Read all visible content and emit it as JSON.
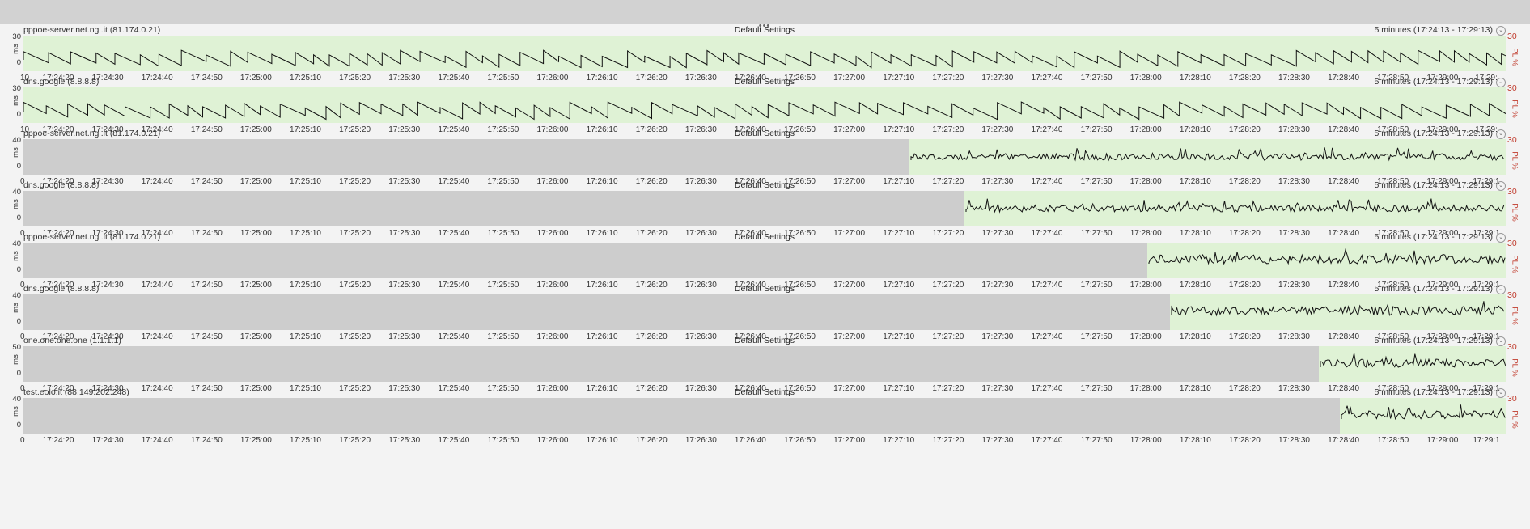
{
  "window": {
    "drag_handle": "•••"
  },
  "panels": [
    {
      "title": "pppoe-server.net.ngi.it (81.174.0.21)",
      "settings": "Default Settings",
      "range": "5 minutes (17:24:13 - 17:29:13)",
      "y_label": "ms",
      "y_ticks": [
        "30",
        "0"
      ],
      "right_max": "30",
      "right_label": "PL %",
      "x_ticks": [
        "10",
        "17:24:20",
        "17:24:30",
        "17:24:40",
        "17:24:50",
        "17:25:00",
        "17:25:10",
        "17:25:20",
        "17:25:30",
        "17:25:40",
        "17:25:50",
        "17:26:00",
        "17:26:10",
        "17:26:20",
        "17:26:30",
        "17:26:40",
        "17:26:50",
        "17:27:00",
        "17:27:10",
        "17:27:20",
        "17:27:30",
        "17:27:40",
        "17:27:50",
        "17:28:00",
        "17:28:10",
        "17:28:20",
        "17:28:30",
        "17:28:40",
        "17:28:50",
        "17:29:00",
        "17:29:"
      ]
    },
    {
      "title": "dns.google (8.8.8.8)",
      "settings": "Default Settings",
      "range": "5 minutes (17:24:13 - 17:29:13)",
      "y_label": "ms",
      "y_ticks": [
        "30",
        "0"
      ],
      "right_max": "30",
      "right_label": "PL %",
      "x_ticks": [
        "10",
        "17:24:20",
        "17:24:30",
        "17:24:40",
        "17:24:50",
        "17:25:00",
        "17:25:10",
        "17:25:20",
        "17:25:30",
        "17:25:40",
        "17:25:50",
        "17:26:00",
        "17:26:10",
        "17:26:20",
        "17:26:30",
        "17:26:40",
        "17:26:50",
        "17:27:00",
        "17:27:10",
        "17:27:20",
        "17:27:30",
        "17:27:40",
        "17:27:50",
        "17:28:00",
        "17:28:10",
        "17:28:20",
        "17:28:30",
        "17:28:40",
        "17:28:50",
        "17:29:00",
        "17:29:"
      ]
    },
    {
      "title": "pppoe-server.net.ngi.it (81.174.0.21)",
      "settings": "Default Settings",
      "range": "5 minutes (17:24:13 - 17:29:13)",
      "y_label": "ms",
      "y_ticks": [
        "40",
        "0"
      ],
      "right_max": "30",
      "right_label": "PL %",
      "x_ticks": [
        "0",
        "17:24:20",
        "17:24:30",
        "17:24:40",
        "17:24:50",
        "17:25:00",
        "17:25:10",
        "17:25:20",
        "17:25:30",
        "17:25:40",
        "17:25:50",
        "17:26:00",
        "17:26:10",
        "17:26:20",
        "17:26:30",
        "17:26:40",
        "17:26:50",
        "17:27:00",
        "17:27:10",
        "17:27:20",
        "17:27:30",
        "17:27:40",
        "17:27:50",
        "17:28:00",
        "17:28:10",
        "17:28:20",
        "17:28:30",
        "17:28:40",
        "17:28:50",
        "17:29:00",
        "17:29:1"
      ]
    },
    {
      "title": "dns.google (8.8.8.8)",
      "settings": "Default Settings",
      "range": "5 minutes (17:24:13 - 17:29:13)",
      "y_label": "ms",
      "y_ticks": [
        "40",
        "0"
      ],
      "right_max": "30",
      "right_label": "PL %",
      "x_ticks": [
        "0",
        "17:24:20",
        "17:24:30",
        "17:24:40",
        "17:24:50",
        "17:25:00",
        "17:25:10",
        "17:25:20",
        "17:25:30",
        "17:25:40",
        "17:25:50",
        "17:26:00",
        "17:26:10",
        "17:26:20",
        "17:26:30",
        "17:26:40",
        "17:26:50",
        "17:27:00",
        "17:27:10",
        "17:27:20",
        "17:27:30",
        "17:27:40",
        "17:27:50",
        "17:28:00",
        "17:28:10",
        "17:28:20",
        "17:28:30",
        "17:28:40",
        "17:28:50",
        "17:29:00",
        "17:29:1"
      ]
    },
    {
      "title": "pppoe-server.net.ngi.it (81.174.0.21)",
      "settings": "Default Settings",
      "range": "5 minutes (17:24:13 - 17:29:13)",
      "y_label": "ms",
      "y_ticks": [
        "40",
        "0"
      ],
      "right_max": "30",
      "right_label": "PL %",
      "x_ticks": [
        "0",
        "17:24:20",
        "17:24:30",
        "17:24:40",
        "17:24:50",
        "17:25:00",
        "17:25:10",
        "17:25:20",
        "17:25:30",
        "17:25:40",
        "17:25:50",
        "17:26:00",
        "17:26:10",
        "17:26:20",
        "17:26:30",
        "17:26:40",
        "17:26:50",
        "17:27:00",
        "17:27:10",
        "17:27:20",
        "17:27:30",
        "17:27:40",
        "17:27:50",
        "17:28:00",
        "17:28:10",
        "17:28:20",
        "17:28:30",
        "17:28:40",
        "17:28:50",
        "17:29:00",
        "17:29:1"
      ]
    },
    {
      "title": "dns.google (8.8.8.8)",
      "settings": "Default Settings",
      "range": "5 minutes (17:24:13 - 17:29:13)",
      "y_label": "ms",
      "y_ticks": [
        "40",
        "0"
      ],
      "right_max": "30",
      "right_label": "PL %",
      "x_ticks": [
        "0",
        "17:24:20",
        "17:24:30",
        "17:24:40",
        "17:24:50",
        "17:25:00",
        "17:25:10",
        "17:25:20",
        "17:25:30",
        "17:25:40",
        "17:25:50",
        "17:26:00",
        "17:26:10",
        "17:26:20",
        "17:26:30",
        "17:26:40",
        "17:26:50",
        "17:27:00",
        "17:27:10",
        "17:27:20",
        "17:27:30",
        "17:27:40",
        "17:27:50",
        "17:28:00",
        "17:28:10",
        "17:28:20",
        "17:28:30",
        "17:28:40",
        "17:28:50",
        "17:29:00",
        "17:29:1"
      ]
    },
    {
      "title": "one.one.one.one (1.1.1.1)",
      "settings": "Default Settings",
      "range": "5 minutes (17:24:13 - 17:29:13)",
      "y_label": "ms",
      "y_ticks": [
        "50",
        "0"
      ],
      "right_max": "30",
      "right_label": "PL %",
      "x_ticks": [
        "0",
        "17:24:20",
        "17:24:30",
        "17:24:40",
        "17:24:50",
        "17:25:00",
        "17:25:10",
        "17:25:20",
        "17:25:30",
        "17:25:40",
        "17:25:50",
        "17:26:00",
        "17:26:10",
        "17:26:20",
        "17:26:30",
        "17:26:40",
        "17:26:50",
        "17:27:00",
        "17:27:10",
        "17:27:20",
        "17:27:30",
        "17:27:40",
        "17:27:50",
        "17:28:00",
        "17:28:10",
        "17:28:20",
        "17:28:30",
        "17:28:40",
        "17:28:50",
        "17:29:00",
        "17:29:1"
      ]
    },
    {
      "title": "test.eolo.it (88.149.202.248)",
      "settings": "Default Settings",
      "range": "5 minutes (17:24:13 - 17:29:13)",
      "y_label": "ms",
      "y_ticks": [
        "40",
        "0"
      ],
      "right_max": "30",
      "right_label": "PL %",
      "x_ticks": [
        "0",
        "17:24:20",
        "17:24:30",
        "17:24:40",
        "17:24:50",
        "17:25:00",
        "17:25:10",
        "17:25:20",
        "17:25:30",
        "17:25:40",
        "17:25:50",
        "17:26:00",
        "17:26:10",
        "17:26:20",
        "17:26:30",
        "17:26:40",
        "17:26:50",
        "17:27:00",
        "17:27:10",
        "17:27:20",
        "17:27:30",
        "17:27:40",
        "17:27:50",
        "17:28:00",
        "17:28:10",
        "17:28:20",
        "17:28:30",
        "17:28:40",
        "17:28:50",
        "17:29:00",
        "17:29:1"
      ]
    }
  ],
  "colors": {
    "top_bar": "#d2d2d2",
    "background": "#f3f3f3",
    "no_data": "#cdcdcd",
    "ok_band": "#dff2d5",
    "line": "#111111",
    "packet_loss": "#c0392b"
  }
}
